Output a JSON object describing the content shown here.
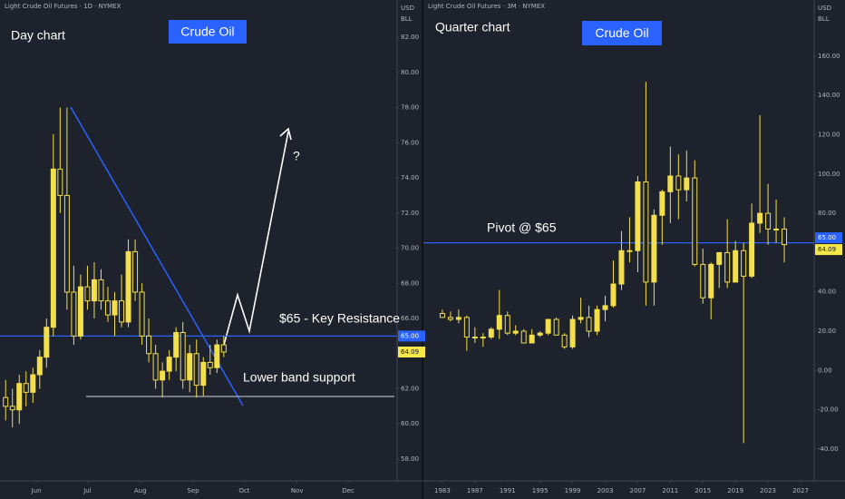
{
  "chart_data": [
    {
      "type": "candlestick",
      "title": "Light Crude Oil Futures · 1D · NYMEX",
      "subtitle": "Day chart",
      "badge": "Crude Oil",
      "annotations": [
        "$65 - Key Resistance",
        "Lower band support",
        "?"
      ],
      "currency": "USD",
      "unit": "BLL",
      "up_color": "#f2df4b",
      "down_color": "#f2df4b",
      "grid": false,
      "x": [
        -18,
        -14,
        -10,
        -6,
        -2,
        2,
        6,
        10,
        14,
        18,
        22,
        26,
        30,
        34,
        38,
        42,
        46,
        50,
        54,
        58,
        62,
        66,
        70,
        74,
        78,
        82,
        86,
        90,
        94,
        98,
        102,
        106,
        110
      ],
      "open": [
        61.5,
        61.0,
        60.8,
        62.3,
        61.8,
        62.8,
        63.8,
        65.5,
        74.5,
        73.0,
        67.5,
        65.0,
        67.8,
        67.0,
        68.2,
        67.0,
        66.2,
        67.0,
        65.8,
        69.8,
        67.5,
        65.0,
        64.0,
        62.5,
        63.0,
        63.8,
        65.2,
        62.5,
        64.0,
        62.2,
        63.5,
        63.2,
        64.5
      ],
      "high": [
        62.5,
        62.0,
        62.8,
        63.0,
        63.2,
        64.2,
        66.0,
        76.5,
        78.0,
        78.0,
        69.0,
        68.5,
        69.0,
        69.2,
        68.8,
        67.8,
        67.5,
        68.5,
        70.5,
        70.5,
        68.0,
        66.0,
        64.5,
        63.5,
        64.2,
        65.5,
        65.8,
        64.5,
        64.8,
        63.8,
        64.5,
        64.8,
        65.0
      ],
      "low": [
        60.2,
        59.8,
        60.0,
        61.0,
        61.2,
        62.0,
        63.2,
        65.0,
        72.0,
        66.5,
        64.5,
        64.8,
        66.5,
        66.0,
        66.5,
        65.8,
        65.0,
        65.5,
        65.5,
        67.0,
        64.5,
        63.5,
        62.0,
        61.5,
        62.5,
        63.0,
        62.0,
        61.8,
        61.5,
        61.6,
        62.8,
        62.9,
        63.8
      ],
      "close": [
        61.0,
        60.8,
        62.3,
        61.8,
        62.8,
        63.8,
        65.5,
        74.5,
        73.0,
        67.5,
        65.0,
        67.8,
        67.0,
        68.2,
        67.0,
        66.2,
        67.0,
        65.8,
        69.8,
        67.5,
        65.0,
        64.0,
        62.5,
        63.0,
        63.8,
        65.2,
        62.5,
        64.0,
        62.2,
        63.5,
        63.2,
        64.5,
        64.09
      ],
      "xlim": [
        -21.3,
        211.7
      ],
      "xticks": [
        {
          "value": 0,
          "label": "Jun"
        },
        {
          "value": 30,
          "label": "Jul"
        },
        {
          "value": 61,
          "label": "Aug"
        },
        {
          "value": 92,
          "label": "Sep"
        },
        {
          "value": 122,
          "label": "Oct"
        },
        {
          "value": 153,
          "label": "Nov"
        },
        {
          "value": 183,
          "label": "Dec"
        }
      ],
      "ylim": [
        56.76,
        84.12
      ],
      "yticks": [
        {
          "value": 58,
          "label": "58.00"
        },
        {
          "value": 60,
          "label": "60.00"
        },
        {
          "value": 62,
          "label": "62.00"
        },
        {
          "value": 64,
          "label": "64.00"
        },
        {
          "value": 66,
          "label": "66.00"
        },
        {
          "value": 68,
          "label": "68.00"
        },
        {
          "value": 70,
          "label": "70.00"
        },
        {
          "value": 72,
          "label": "72.00"
        },
        {
          "value": 74,
          "label": "74.00"
        },
        {
          "value": 76,
          "label": "76.00"
        },
        {
          "value": 78,
          "label": "78.00"
        },
        {
          "value": 80,
          "label": "80.00"
        },
        {
          "value": 82,
          "label": "82.00"
        }
      ],
      "price_line": {
        "value": 65,
        "label": "65.00",
        "color": "#2962ff"
      },
      "last_price": {
        "value": 64.09,
        "label": "64.09",
        "color": "#f7e84a"
      }
    },
    {
      "type": "candlestick",
      "title": "Light Crude Oil Futures · 3M · NYMEX",
      "subtitle": "Quarter chart",
      "badge": "Crude Oil",
      "annotations": [
        "Pivot @ $65"
      ],
      "currency": "USD",
      "unit": "BLL",
      "up_color": "#f2df4b",
      "down_color": "#f2df4b",
      "grid": false,
      "x": [
        1983,
        1984,
        1985,
        1986,
        1987,
        1988,
        1989,
        1990,
        1991,
        1992,
        1993,
        1994,
        1995,
        1996,
        1997,
        1998,
        1999,
        2000,
        2001,
        2002,
        2003,
        2004,
        2005,
        2006,
        2007,
        2008,
        2009,
        2010,
        2011,
        2012,
        2013,
        2014,
        2015,
        2016,
        2017,
        2018,
        2019,
        2020,
        2021,
        2022,
        2023,
        2024,
        2025
      ],
      "open": [
        29,
        27,
        26,
        27,
        17,
        17,
        17,
        21,
        28,
        19,
        20,
        14,
        18,
        19,
        26,
        18,
        12,
        26,
        27,
        20,
        31,
        33,
        44,
        61,
        61,
        96,
        45,
        79,
        91,
        99,
        92,
        98,
        54,
        37,
        54,
        60,
        45,
        61,
        48,
        75,
        80,
        72,
        72
      ],
      "high": [
        31,
        30,
        31,
        28,
        22,
        19,
        22,
        41,
        30,
        23,
        21,
        21,
        20,
        26,
        27,
        19,
        28,
        37,
        33,
        33,
        38,
        56,
        71,
        78,
        99,
        147,
        82,
        92,
        114,
        110,
        112,
        107,
        62,
        55,
        60,
        77,
        66,
        65,
        85,
        130,
        95,
        87,
        78
      ],
      "low": [
        27,
        25,
        24,
        10,
        14,
        12,
        16,
        16,
        18,
        18,
        14,
        14,
        17,
        18,
        18,
        11,
        11,
        24,
        17,
        18,
        25,
        32,
        41,
        55,
        50,
        33,
        33,
        64,
        75,
        77,
        86,
        53,
        34,
        26,
        42,
        42,
        45,
        -37,
        47,
        70,
        64,
        65,
        55
      ],
      "close": [
        27,
        26,
        27,
        17,
        17,
        17,
        21,
        28,
        19,
        20,
        14,
        18,
        19,
        26,
        18,
        12,
        26,
        27,
        20,
        31,
        33,
        44,
        61,
        61,
        96,
        45,
        79,
        91,
        99,
        92,
        98,
        54,
        37,
        54,
        60,
        45,
        61,
        48,
        75,
        80,
        72,
        72,
        64.09
      ],
      "xlim": [
        1980.67,
        2028.67
      ],
      "xticks": [
        1983,
        1987,
        1991,
        1995,
        1999,
        2003,
        2007,
        2011,
        2015,
        2019,
        2023,
        2027
      ],
      "ylim": [
        -56.2,
        188.6
      ],
      "yticks": [
        {
          "value": -40,
          "label": "-40.00"
        },
        {
          "value": -20,
          "label": "-20.00"
        },
        {
          "value": 0,
          "label": "0.00"
        },
        {
          "value": 20,
          "label": "20.00"
        },
        {
          "value": 40,
          "label": "40.00"
        },
        {
          "value": 60,
          "label": "60.00"
        },
        {
          "value": 80,
          "label": "80.00"
        },
        {
          "value": 100,
          "label": "100.00"
        },
        {
          "value": 120,
          "label": "120.00"
        },
        {
          "value": 140,
          "label": "140.00"
        },
        {
          "value": 160,
          "label": "160.00"
        }
      ],
      "price_line": {
        "value": 65,
        "label": "65.00",
        "color": "#2962ff"
      },
      "last_price": {
        "value": 64.09,
        "label": "64.09",
        "color": "#f7e84a"
      }
    }
  ]
}
